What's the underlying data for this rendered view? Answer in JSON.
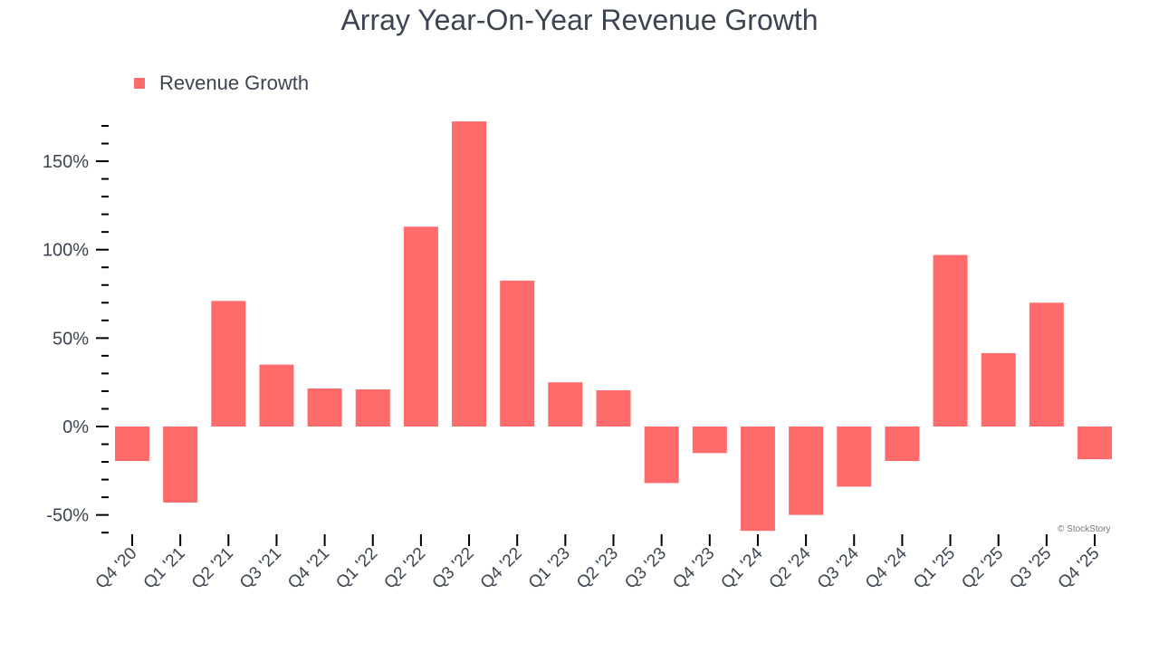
{
  "chart_data": {
    "type": "bar",
    "title": "Array Year-On-Year Revenue Growth",
    "categories": [
      "Q4 '20",
      "Q1 '21",
      "Q2 '21",
      "Q3 '21",
      "Q4 '21",
      "Q1 '22",
      "Q2 '22",
      "Q3 '22",
      "Q4 '22",
      "Q1 '23",
      "Q2 '23",
      "Q3 '23",
      "Q4 '23",
      "Q1 '24",
      "Q2 '24",
      "Q3 '24",
      "Q4 '24",
      "Q1 '25",
      "Q2 '25",
      "Q3 '25",
      "Q4 '25"
    ],
    "series": [
      {
        "name": "Revenue Growth",
        "color": "#ff6b6b",
        "values": [
          -19.5,
          -43,
          71,
          35,
          21.5,
          21,
          113,
          172.5,
          82.5,
          25,
          20.5,
          -32,
          -15,
          -59,
          -50,
          -34,
          -19.5,
          97,
          41.5,
          70,
          -18.5
        ]
      }
    ],
    "yticks": [
      -50,
      0,
      50,
      100,
      150
    ],
    "ytick_labels": [
      "-50%",
      "0%",
      "50%",
      "100%",
      "150%"
    ],
    "ylim": [
      -60,
      170
    ],
    "legend_position": "top-left",
    "grid": false
  },
  "credit": "© StockStory"
}
